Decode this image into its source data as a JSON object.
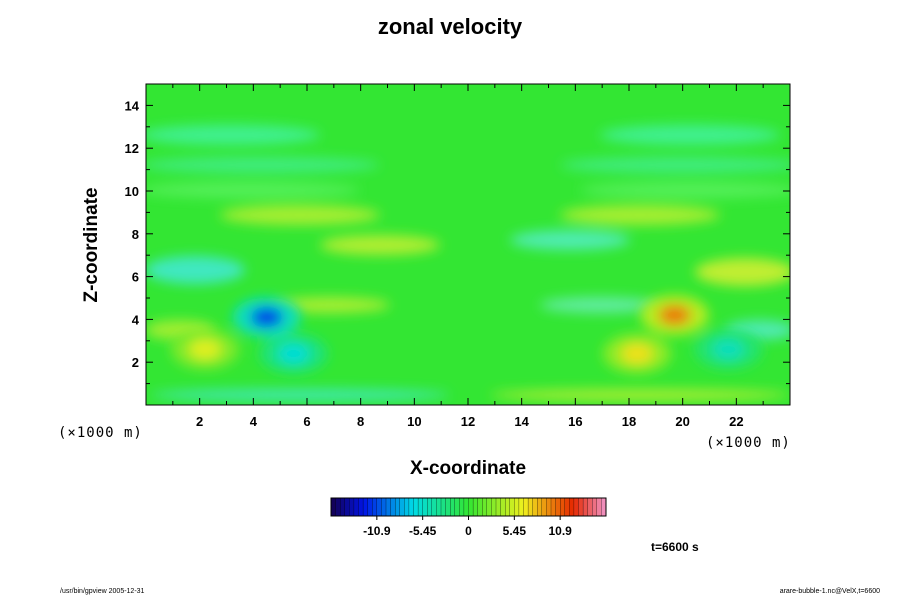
{
  "chart_data": {
    "type": "heatmap",
    "title": "zonal velocity",
    "xlabel": "X-coordinate",
    "ylabel": "Z-coordinate",
    "x_unit": "(×1000 m)",
    "y_unit": "(×1000 m)",
    "xlim": [
      0,
      24
    ],
    "ylim": [
      0,
      15
    ],
    "x_ticks": [
      2,
      4,
      6,
      8,
      10,
      12,
      14,
      16,
      18,
      20,
      22
    ],
    "y_ticks": [
      2,
      4,
      6,
      8,
      10,
      12,
      14
    ],
    "colorbar": {
      "vmin": -16.35,
      "vmax": 16.35,
      "ticks": [
        -10.9,
        -5.45,
        0,
        5.45,
        10.9
      ]
    },
    "features": [
      {
        "x": 4.5,
        "z": 4.1,
        "value": -11
      },
      {
        "x": 5.5,
        "z": 2.4,
        "value": -6
      },
      {
        "x": 19.7,
        "z": 4.2,
        "value": 10
      },
      {
        "x": 18.3,
        "z": 2.4,
        "value": 7
      },
      {
        "x": 2.2,
        "z": 2.6,
        "value": 6
      },
      {
        "x": 21.7,
        "z": 2.6,
        "value": -5
      }
    ]
  },
  "annotations": {
    "time": "t=6600 s",
    "footer_left": "/usr/bin/gpview 2005-12-31",
    "footer_right": "arare-bubble-1.nc@VelX,t=6600"
  }
}
